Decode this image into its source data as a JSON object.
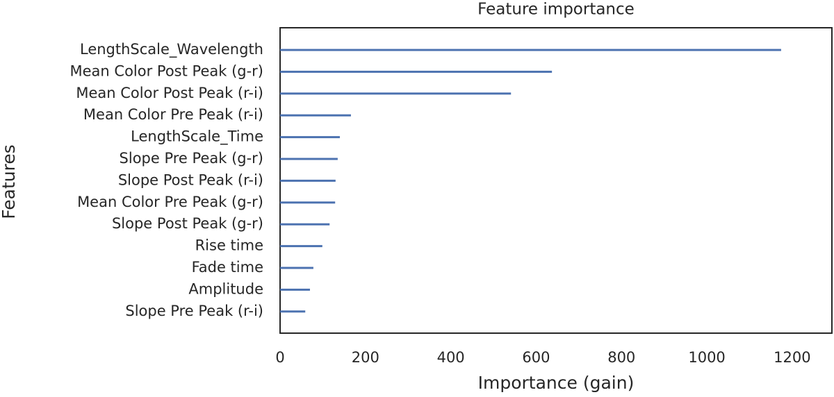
{
  "chart_data": {
    "type": "barh",
    "title": "Feature importance",
    "x_label": "Importance (gain)",
    "y_label": "Features",
    "categories": [
      "LengthScale_Wavelength",
      "Mean Color Post Peak (g-r)",
      "Mean Color Post Peak (r-i)",
      "Mean Color Pre Peak (r-i)",
      "LengthScale_Time",
      "Slope Pre Peak (g-r)",
      "Slope Post Peak (r-i)",
      "Mean Color Pre Peak (g-r)",
      "Slope Post Peak (g-r)",
      "Rise time",
      "Fade time",
      "Amplitude",
      "Slope Pre Peak (r-i)"
    ],
    "values": [
      1174,
      637,
      541,
      166,
      140,
      135,
      130,
      129,
      116,
      99,
      78,
      70,
      59
    ],
    "color": "#4c72b0",
    "xlim": [
      0,
      1293
    ],
    "xticks": [
      0,
      200,
      400,
      600,
      800,
      1000,
      1200
    ],
    "grid": false
  }
}
